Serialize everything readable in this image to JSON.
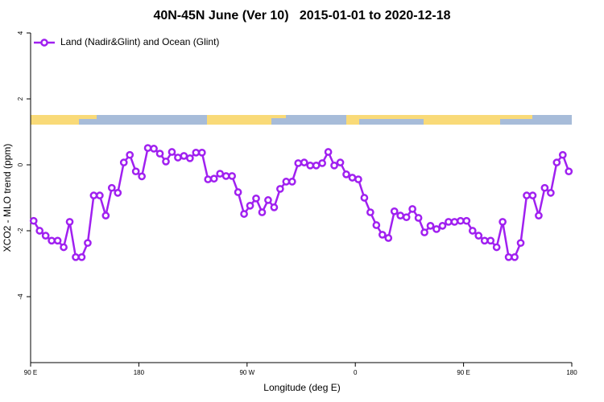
{
  "chart_data": {
    "type": "line",
    "title": "40N-45N June (Ver 10)   2015-01-01 to 2020-12-18",
    "x_label": "Longitude (deg E)",
    "y_label": "XCO2 - MLO trend (ppm)",
    "x": [
      92.5,
      97.5,
      102.5,
      107.5,
      112.5,
      117.5,
      122.5,
      127.5,
      132.5,
      137.5,
      142.5,
      147.5,
      152.5,
      157.5,
      162.5,
      167.5,
      172.5,
      177.5,
      182.5,
      187.5,
      192.5,
      197.5,
      202.5,
      207.5,
      212.5,
      217.5,
      222.5,
      227.5,
      232.5,
      237.5,
      242.5,
      247.5,
      252.5,
      257.5,
      262.5,
      267.5,
      272.5,
      277.5,
      282.5,
      287.5,
      292.5,
      297.5,
      302.5,
      307.5,
      312.5,
      317.5,
      322.5,
      327.5,
      332.5,
      337.5,
      342.5,
      347.5,
      352.5,
      357.5,
      362.5,
      367.5,
      372.5,
      377.5,
      382.5,
      387.5,
      392.5,
      397.5,
      402.5,
      407.5,
      412.5,
      417.5,
      422.5,
      427.5,
      432.5,
      437.5,
      442.5,
      447.5,
      452.5,
      457.5,
      462.5,
      467.5,
      472.5,
      477.5,
      482.5,
      487.5,
      492.5,
      497.5,
      502.5,
      507.5,
      512.5,
      517.5,
      522.5,
      527.5,
      532.5,
      537.5
    ],
    "series": [
      {
        "name": "Land (Nadir&Glint) and Ocean (Glint)",
        "color": "#a020f0",
        "values": [
          -1.7,
          -2.0,
          -2.15,
          -2.3,
          -2.3,
          -2.5,
          -1.73,
          -2.8,
          -2.8,
          -2.37,
          -0.93,
          -0.93,
          -1.54,
          -0.7,
          -0.85,
          0.07,
          0.3,
          -0.2,
          -0.35,
          0.51,
          0.49,
          0.34,
          0.1,
          0.39,
          0.22,
          0.27,
          0.2,
          0.37,
          0.37,
          -0.44,
          -0.42,
          -0.27,
          -0.34,
          -0.34,
          -0.83,
          -1.49,
          -1.24,
          -1.02,
          -1.44,
          -1.07,
          -1.29,
          -0.73,
          -0.51,
          -0.51,
          0.05,
          0.07,
          -0.02,
          -0.02,
          0.05,
          0.39,
          -0.02,
          0.07,
          -0.29,
          -0.39,
          -0.44,
          -1.0,
          -1.44,
          -1.83,
          -2.12,
          -2.22,
          -1.41,
          -1.54,
          -1.59,
          -1.34,
          -1.61,
          -2.05,
          -1.85,
          -1.95,
          -1.85,
          -1.73,
          -1.73,
          -1.7,
          -1.7,
          -2.0,
          -2.15,
          -2.3,
          -2.3,
          -2.5,
          -1.73,
          -2.8,
          -2.8,
          -2.37,
          -0.93,
          -0.93,
          -1.54,
          -0.7,
          -0.85,
          0.07,
          0.3,
          -0.2
        ]
      }
    ],
    "xlim": [
      90,
      540
    ],
    "xticks": [
      {
        "value": 90,
        "label": "90 E"
      },
      180,
      {
        "value": 270,
        "label": "90 W"
      },
      {
        "value": 360,
        "label": "0"
      },
      {
        "value": 450,
        "label": "90 E"
      },
      {
        "value": 540,
        "label": "180"
      }
    ],
    "ylim": [
      -6,
      4
    ],
    "yticks": [
      -4,
      -2,
      0,
      2,
      4
    ],
    "legend": "top-left"
  }
}
